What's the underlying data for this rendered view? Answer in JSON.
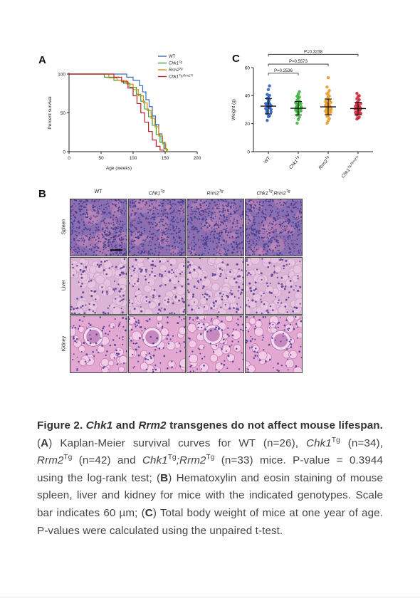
{
  "panels": {
    "a_label": "A",
    "b_label": "B",
    "c_label": "C"
  },
  "chart_data": [
    {
      "type": "line",
      "panel": "A",
      "title": "",
      "xlabel": "Age (weeks)",
      "ylabel": "Percent survival",
      "xlim": [
        0,
        200
      ],
      "ylim": [
        0,
        100
      ],
      "xticks": [
        "0",
        "50",
        "100",
        "150",
        "200"
      ],
      "yticks": [
        "0",
        "50",
        "100"
      ],
      "legend": "top-right",
      "series": [
        {
          "name": "WT",
          "legend_base": "WT",
          "legend_sup": "",
          "color": "#3b6bb5",
          "x": [
            0,
            40,
            60,
            80,
            90,
            100,
            110,
            115,
            120,
            125,
            130,
            135,
            140,
            145,
            150,
            152
          ],
          "y": [
            100,
            100,
            100,
            100,
            96,
            92,
            85,
            77,
            67,
            58,
            46,
            35,
            23,
            12,
            4,
            0
          ]
        },
        {
          "name": "Chk1Tg",
          "legend_base": "Chk1",
          "legend_sup": "Tg",
          "color": "#3aa23a",
          "x": [
            0,
            45,
            55,
            70,
            85,
            95,
            105,
            112,
            118,
            124,
            130,
            136,
            142,
            148,
            152
          ],
          "y": [
            100,
            100,
            96,
            92,
            88,
            83,
            74,
            65,
            55,
            45,
            34,
            22,
            12,
            4,
            0
          ]
        },
        {
          "name": "Rrm2Tg",
          "legend_base": "Rrm2",
          "legend_sup": "Tg",
          "color": "#d88a12",
          "x": [
            0,
            50,
            62,
            75,
            90,
            100,
            108,
            116,
            122,
            128,
            134,
            140,
            146,
            151,
            154
          ],
          "y": [
            100,
            100,
            95,
            92,
            87,
            80,
            72,
            63,
            53,
            43,
            32,
            20,
            10,
            3,
            0
          ]
        },
        {
          "name": "Chk1Tg;Rrm2Tg",
          "legend_base": "Chk1",
          "legend_sup": "Tg;Rrm2",
          "legend_sup2": "Tg",
          "color": "#c01f2a",
          "x": [
            0,
            50,
            70,
            82,
            92,
            100,
            106,
            112,
            118,
            124,
            130,
            136,
            142,
            148
          ],
          "y": [
            100,
            100,
            96,
            90,
            82,
            72,
            62,
            50,
            38,
            26,
            15,
            7,
            2,
            0
          ]
        }
      ]
    },
    {
      "type": "scatter",
      "panel": "C",
      "title": "",
      "xlabel": "",
      "ylabel": "Weight (g)",
      "ylim": [
        0,
        60
      ],
      "yticks": [
        "0",
        "20",
        "40",
        "60"
      ],
      "categories": [
        "WT",
        "Chk1Tg",
        "Rrm2Tg",
        "Chk1Tg;Rrm2Tg"
      ],
      "category_labels": [
        {
          "base": "WT",
          "sup": ""
        },
        {
          "base": "Chk1",
          "sup": "Tg"
        },
        {
          "base": "Rrm2",
          "sup": "Tg"
        },
        {
          "base": "Chk1",
          "sup": "Tg;Rrm2",
          "sup2": "Tg"
        }
      ],
      "colors": [
        "#2f5fc0",
        "#3fb23f",
        "#e89a2a",
        "#d2263a"
      ],
      "means": [
        32.5,
        31.0,
        32.0,
        30.8
      ],
      "sds": [
        5.5,
        4.8,
        5.6,
        4.5
      ],
      "points": [
        [
          22,
          25,
          26,
          27,
          28,
          28,
          29,
          30,
          30,
          31,
          31,
          32,
          32,
          33,
          33,
          34,
          34,
          35,
          35,
          36,
          37,
          38,
          39,
          40,
          41,
          44,
          47
        ],
        [
          20,
          23,
          25,
          26,
          27,
          28,
          28,
          29,
          29,
          30,
          30,
          31,
          31,
          31,
          32,
          32,
          32,
          33,
          33,
          34,
          34,
          35,
          35,
          36,
          37,
          38,
          39,
          40,
          41,
          43
        ],
        [
          20,
          22,
          24,
          25,
          26,
          27,
          27,
          28,
          28,
          29,
          29,
          30,
          30,
          30,
          31,
          31,
          32,
          32,
          33,
          33,
          34,
          34,
          35,
          35,
          36,
          36,
          37,
          38,
          39,
          40,
          41,
          42,
          44,
          46,
          53
        ],
        [
          23,
          24,
          25,
          26,
          27,
          27,
          28,
          28,
          29,
          29,
          30,
          30,
          30,
          31,
          31,
          32,
          32,
          33,
          33,
          34,
          34,
          35,
          36,
          37,
          38,
          39,
          40,
          42
        ]
      ],
      "comparisons": [
        {
          "from": 0,
          "to": 1,
          "label": "P=0.2536"
        },
        {
          "from": 0,
          "to": 2,
          "label": "P=0.5573"
        },
        {
          "from": 0,
          "to": 3,
          "label": "P=0.3238"
        }
      ]
    }
  ],
  "histology": {
    "columns": [
      {
        "base": "WT",
        "sup": ""
      },
      {
        "base": "Chk1",
        "sup": "Tg"
      },
      {
        "base": "Rrm2",
        "sup": "Tg"
      },
      {
        "base": "Chk1",
        "sup": "Tg",
        "mid": ";Rrm2",
        "sup2": "Tg"
      }
    ],
    "rows": [
      "Spleen",
      "Liver",
      "Kidney"
    ]
  },
  "caption": {
    "fig_label": "Figure 2.",
    "title_p1": "Chk1",
    "title_p2": " and ",
    "title_p3": "Rrm2",
    "title_p4": " transgenes do not affect mouse lifespan.",
    "t1": " (",
    "a": "A",
    "t2": ") Kaplan-Meier survival curves for WT (n=26), ",
    "g1": "Chk1",
    "g1s": "Tg",
    "t3": " (n=34), ",
    "g2": "Rrm2",
    "g2s": "Tg",
    "t4": " (n=42) and ",
    "g3": "Chk1",
    "g3s": "Tg",
    "g3m": ";Rrm2",
    "g3s2": "Tg",
    "t5": " (n=33) mice. P-value = 0.3944 using the log-rank test; (",
    "b": "B",
    "t6": ") Hematoxylin and eosin staining of mouse spleen, liver and kidney for mice with the indicated genotypes. Scale bar indicates 60 µm; (",
    "c": "C",
    "t7": ") Total body weight of mice at one year of age. P-values were calculated using the unpaired t-test."
  }
}
